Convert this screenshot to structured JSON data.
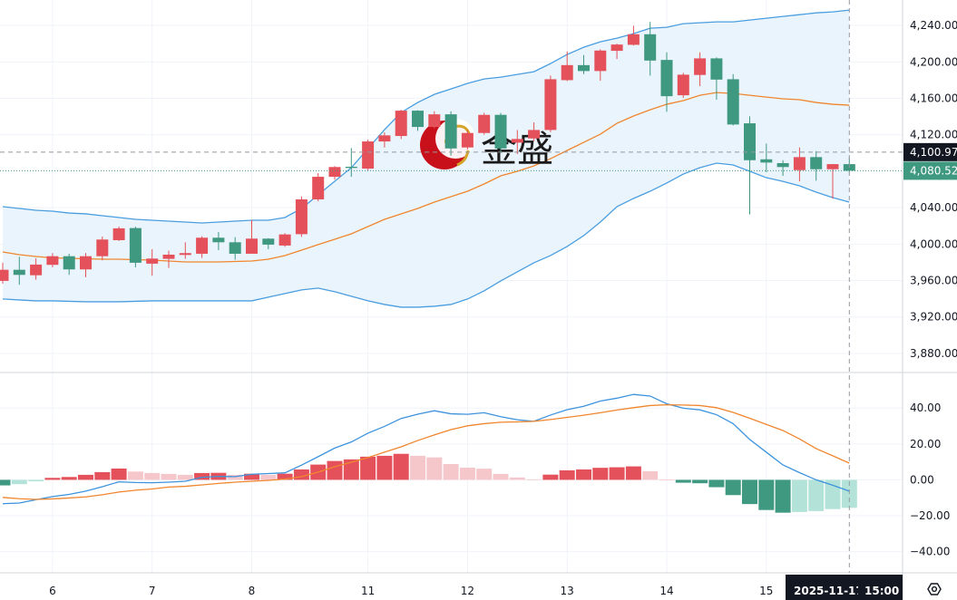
{
  "chart_data": {
    "type": "candlestick",
    "watermark": "金盛",
    "price_pane": {
      "ylim": [
        3860,
        4268
      ],
      "yticks": [
        4240,
        4200,
        4160,
        4120,
        4040,
        4000,
        3960,
        3920,
        3880
      ],
      "ytick_labels": [
        "4,240.00",
        "4,200.00",
        "4,160.00",
        "4,120.00",
        "4,040.00",
        "4,000.00",
        "3,960.00",
        "3,920.00",
        "3,880.00"
      ],
      "candles_ohlc": [
        [
          3959.6,
          3979.5,
          3956.6,
          3971.8
        ],
        [
          3971.8,
          3986.1,
          3955.3,
          3966.2
        ],
        [
          3965.8,
          3984.4,
          3960.9,
          3977.5
        ],
        [
          3977.2,
          3990.1,
          3974.5,
          3986.7
        ],
        [
          3986.7,
          3989.4,
          3966.2,
          3972.2
        ],
        [
          3972.2,
          3990.1,
          3963.6,
          3986.7
        ],
        [
          3986.7,
          4008.3,
          3982.2,
          4005.0
        ],
        [
          4004.3,
          4019.2,
          4003.5,
          4017.3
        ],
        [
          4017.6,
          4019.2,
          3974.5,
          3979.5
        ],
        [
          3978.5,
          3994.4,
          3965.2,
          3984.1
        ],
        [
          3983.8,
          3992.7,
          3973.8,
          3988.4
        ],
        [
          3988.1,
          4002.0,
          3983.8,
          3990.1
        ],
        [
          3989.4,
          4008.6,
          3984.8,
          4007.0
        ],
        [
          4007.0,
          4013.3,
          3993.4,
          4002.0
        ],
        [
          4002.0,
          4007.6,
          3982.8,
          3989.4
        ],
        [
          3989.4,
          4026.5,
          3989.4,
          4006.0
        ],
        [
          4006.0,
          4006.5,
          3994.4,
          3999.4
        ],
        [
          3998.4,
          4012.0,
          3997.0,
          4010.6
        ],
        [
          4010.9,
          4052.4,
          4008.0,
          4049.1
        ],
        [
          4049.1,
          4077.9,
          4047.0,
          4073.9
        ],
        [
          4073.9,
          4085.6,
          4070.7,
          4084.6
        ],
        [
          4084.9,
          4105.4,
          4073.9,
          4083.6
        ],
        [
          4082.9,
          4114.7,
          4081.0,
          4112.7
        ],
        [
          4112.7,
          4122.7,
          4106.0,
          4119.4
        ],
        [
          4118.7,
          4147.5,
          4115.4,
          4146.5
        ],
        [
          4146.5,
          4147.0,
          4124.3,
          4128.6
        ],
        [
          4128.6,
          4145.8,
          4127.0,
          4142.5
        ],
        [
          4142.5,
          4145.8,
          4097.0,
          4105.0
        ],
        [
          4106.1,
          4125.3,
          4104.0,
          4122.0
        ],
        [
          4122.0,
          4144.2,
          4120.0,
          4141.9
        ],
        [
          4141.9,
          4144.0,
          4100.0,
          4105.0
        ],
        [
          4111.4,
          4125.3,
          4098.8,
          4115.4
        ],
        [
          4116.0,
          4133.6,
          4113.0,
          4125.3
        ],
        [
          4125.3,
          4185.0,
          4123.0,
          4181.0
        ],
        [
          4180.0,
          4211.5,
          4179.0,
          4196.5
        ],
        [
          4196.5,
          4207.5,
          4186.6,
          4190.0
        ],
        [
          4190.0,
          4213.9,
          4179.3,
          4212.5
        ],
        [
          4212.2,
          4220.0,
          4203.2,
          4219.1
        ],
        [
          4218.8,
          4239.7,
          4218.0,
          4230.4
        ],
        [
          4230.4,
          4244.0,
          4185.0,
          4201.5
        ],
        [
          4202.2,
          4210.5,
          4145.2,
          4162.4
        ],
        [
          4163.4,
          4188.0,
          4160.7,
          4186.0
        ],
        [
          4185.7,
          4210.5,
          4173.4,
          4203.9
        ],
        [
          4203.9,
          4205.0,
          4158.5,
          4180.6
        ],
        [
          4181.0,
          4186.6,
          4130.3,
          4131.3
        ],
        [
          4132.6,
          4140.3,
          4032.5,
          4092.1
        ],
        [
          4093.1,
          4110.4,
          4078.9,
          4089.5
        ],
        [
          4088.9,
          4092.1,
          4074.9,
          4084.6
        ],
        [
          4081.2,
          4106.1,
          4068.9,
          4095.5
        ],
        [
          4095.5,
          4102.1,
          4069.6,
          4082.2
        ],
        [
          4082.2,
          4088.0,
          4050.0,
          4087.8
        ],
        [
          4087.8,
          4095.5,
          4079.0,
          4080.52
        ]
      ],
      "bollinger": {
        "upper": [
          4041.1,
          4039.1,
          4037.1,
          4036.1,
          4034.1,
          4033.2,
          4031.2,
          4029.2,
          4027.2,
          4026.2,
          4025.2,
          4024.2,
          4023.2,
          4024.2,
          4025.2,
          4026.2,
          4026.2,
          4029.2,
          4039.1,
          4054.0,
          4069.0,
          4083.9,
          4104.8,
          4125.6,
          4144.5,
          4155.5,
          4164.4,
          4170.4,
          4176.4,
          4181.3,
          4183.3,
          4186.3,
          4189.3,
          4198.2,
          4208.2,
          4216.1,
          4222.1,
          4226.1,
          4231.1,
          4237.0,
          4238.0,
          4242.0,
          4243.0,
          4244.0,
          4244.0,
          4246.0,
          4248.0,
          4250.0,
          4251.9,
          4253.9,
          4254.9,
          4256.9
        ],
        "middle": [
          3991.4,
          3988.4,
          3986.4,
          3984.9,
          3984.4,
          3983.9,
          3983.4,
          3983.4,
          3982.9,
          3982.4,
          3981.4,
          3980.4,
          3980.4,
          3980.4,
          3980.9,
          3981.4,
          3983.4,
          3987.4,
          3993.4,
          3999.4,
          4005.3,
          4011.3,
          4019.2,
          4027.2,
          4033.2,
          4039.1,
          4046.1,
          4052.1,
          4058.0,
          4066.0,
          4074.9,
          4079.9,
          4085.9,
          4093.8,
          4102.8,
          4111.7,
          4120.7,
          4132.6,
          4140.6,
          4147.5,
          4153.5,
          4157.5,
          4163.4,
          4166.4,
          4165.4,
          4163.4,
          4161.4,
          4159.5,
          4158.5,
          4155.5,
          4153.5,
          4152.5
        ],
        "lower": [
          3939.7,
          3938.7,
          3937.7,
          3937.7,
          3937.2,
          3936.7,
          3936.7,
          3936.7,
          3937.2,
          3937.7,
          3937.7,
          3937.7,
          3937.7,
          3937.7,
          3937.7,
          3937.7,
          3941.7,
          3945.7,
          3949.7,
          3951.7,
          3947.7,
          3942.7,
          3937.7,
          3933.7,
          3930.7,
          3930.7,
          3931.7,
          3933.7,
          3939.7,
          3948.6,
          3959.6,
          3969.5,
          3979.5,
          3987.4,
          3997.4,
          4009.3,
          4024.2,
          4041.1,
          4050.1,
          4058.0,
          4067.0,
          4076.9,
          4083.9,
          4088.9,
          4086.9,
          4079.9,
          4072.9,
          4068.9,
          4064.0,
          4057.0,
          4051.1,
          4046.1
        ]
      },
      "crosshair_price": {
        "value": 4100.97,
        "label": "4,100.97"
      },
      "last_price": {
        "value": 4080.52,
        "label": "4,080.52"
      }
    },
    "macd_pane": {
      "ylim": [
        -51.8,
        59.3
      ],
      "yticks": [
        40,
        20,
        0,
        -20,
        -40
      ],
      "ytick_labels": [
        "40.00",
        "20.00",
        "0.00",
        "−20.00",
        "−40.00"
      ],
      "histogram": [
        -3.1,
        -2.4,
        -0.8,
        1.1,
        1.6,
        2.8,
        4.3,
        6.3,
        4.6,
        3.8,
        3.3,
        2.8,
        3.8,
        3.9,
        2.8,
        3.4,
        2.8,
        3.4,
        5.8,
        8.5,
        10.5,
        11.4,
        12.9,
        13.4,
        14.5,
        13.4,
        12.5,
        8.8,
        6.8,
        6.2,
        3.3,
        1.3,
        0.3,
        2.9,
        5.3,
        5.8,
        6.7,
        7.0,
        7.5,
        4.8,
        0.2,
        -1.6,
        -1.9,
        -4.1,
        -8.5,
        -13.5,
        -16.8,
        -18.3,
        -17.9,
        -17.4,
        -16.3,
        -15.6
      ],
      "macd": [
        -13.3,
        -12.9,
        -11.1,
        -9.3,
        -8.1,
        -6.3,
        -3.8,
        -1.1,
        -1.5,
        -1.6,
        -1.3,
        -0.8,
        1.4,
        1.9,
        1.8,
        3.1,
        3.5,
        3.9,
        8.2,
        12.9,
        17.7,
        21.1,
        26.0,
        29.8,
        34.2,
        36.6,
        38.5,
        36.8,
        36.5,
        37.4,
        35.2,
        33.5,
        32.6,
        36.1,
        39.1,
        41.0,
        43.9,
        45.5,
        47.6,
        46.7,
        42.4,
        39.9,
        39.0,
        36.3,
        31.3,
        22.5,
        15.4,
        8.3,
        4.0,
        0.0,
        -3.0,
        -6.3
      ],
      "signal": [
        -9.8,
        -10.5,
        -10.9,
        -10.6,
        -10.1,
        -9.5,
        -8.3,
        -6.8,
        -5.8,
        -5.1,
        -4.0,
        -3.6,
        -2.8,
        -2.0,
        -1.3,
        -0.8,
        -0.3,
        0.4,
        1.8,
        4.3,
        7.3,
        9.8,
        12.4,
        15.4,
        18.4,
        21.9,
        25.0,
        28.0,
        30.1,
        31.3,
        32.1,
        32.3,
        32.6,
        33.6,
        34.8,
        36.0,
        37.4,
        38.9,
        40.2,
        41.4,
        41.8,
        41.7,
        41.4,
        40.2,
        37.6,
        34.3,
        30.9,
        27.5,
        22.8,
        17.4,
        13.4,
        9.3
      ]
    },
    "x_axis": {
      "ticks": [
        {
          "label": "6",
          "index": 3
        },
        {
          "label": "7",
          "index": 9
        },
        {
          "label": "8",
          "index": 15
        },
        {
          "label": "11",
          "index": 22
        },
        {
          "label": "12",
          "index": 28
        },
        {
          "label": "13",
          "index": 34
        },
        {
          "label": "14",
          "index": 40
        },
        {
          "label": "15",
          "index": 46
        }
      ],
      "crosshair_index": 51,
      "crosshair_date": "2025-11-17",
      "crosshair_time": "15:00"
    }
  },
  "colors": {
    "up": "#e5515a",
    "down": "#3f9880",
    "up_light": "#f5c6ca",
    "down_light": "#b3e3d8",
    "band": "#4a9ee0",
    "band_fill": "#eaf4fc",
    "basis": "#f0862e",
    "macd": "#3d93dd",
    "signal": "#f0862e",
    "crosshair_tag": "#131722",
    "last_tag": "#3f9880"
  }
}
